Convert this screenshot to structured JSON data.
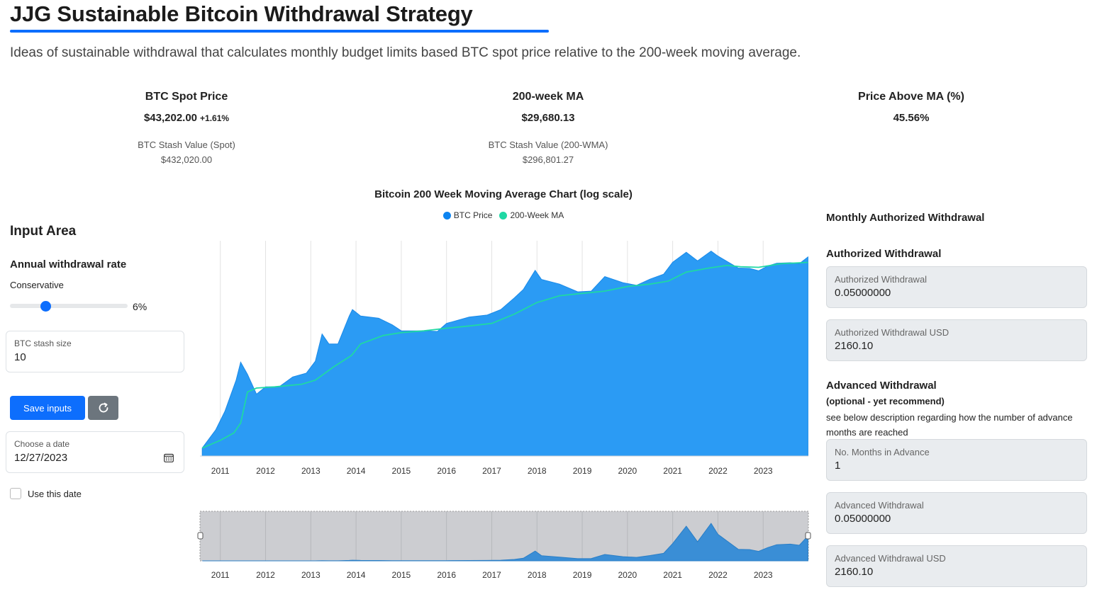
{
  "header": {
    "title": "JJG Sustainable Bitcoin Withdrawal Strategy",
    "subtitle": "Ideas of sustainable withdrawal that calculates monthly budget limits based BTC spot price relative to the 200-week moving average."
  },
  "stats": {
    "spot": {
      "label": "BTC Spot Price",
      "value": "$43,202.00",
      "change": "+1.61%",
      "stash_label": "BTC Stash Value (Spot)",
      "stash_value": "$432,020.00"
    },
    "ma": {
      "label": "200-week MA",
      "value": "$29,680.13",
      "stash_label": "BTC Stash Value (200-WMA)",
      "stash_value": "$296,801.27"
    },
    "above": {
      "label": "Price Above MA (%)",
      "value": "45.56%"
    }
  },
  "chart": {
    "title": "Bitcoin 200 Week Moving Average Chart (log scale)",
    "legend": [
      "BTC Price",
      "200-Week MA"
    ]
  },
  "chart_data": {
    "type": "area",
    "title": "Bitcoin 200 Week Moving Average Chart (log scale)",
    "y_scale": "log",
    "x_ticks": [
      "2011",
      "2012",
      "2013",
      "2014",
      "2015",
      "2016",
      "2017",
      "2018",
      "2019",
      "2020",
      "2021",
      "2022",
      "2023"
    ],
    "grid": "vertical lines",
    "legend_position": "top-center",
    "series": [
      {
        "name": "BTC Price",
        "color": "#2b9bf4",
        "points": [
          [
            2010.6,
            0.07
          ],
          [
            2010.9,
            0.25
          ],
          [
            2011.1,
            0.9
          ],
          [
            2011.35,
            8
          ],
          [
            2011.45,
            28
          ],
          [
            2011.6,
            12
          ],
          [
            2011.8,
            3
          ],
          [
            2012.0,
            5
          ],
          [
            2012.3,
            5
          ],
          [
            2012.6,
            10
          ],
          [
            2012.9,
            13
          ],
          [
            2013.1,
            30
          ],
          [
            2013.25,
            200
          ],
          [
            2013.4,
            100
          ],
          [
            2013.6,
            100
          ],
          [
            2013.85,
            700
          ],
          [
            2013.92,
            1100
          ],
          [
            2014.1,
            700
          ],
          [
            2014.5,
            600
          ],
          [
            2014.8,
            380
          ],
          [
            2015.0,
            250
          ],
          [
            2015.5,
            250
          ],
          [
            2015.8,
            240
          ],
          [
            2016.0,
            420
          ],
          [
            2016.5,
            650
          ],
          [
            2016.9,
            750
          ],
          [
            2017.2,
            1100
          ],
          [
            2017.5,
            2500
          ],
          [
            2017.7,
            4500
          ],
          [
            2017.96,
            17000
          ],
          [
            2018.1,
            9000
          ],
          [
            2018.5,
            6500
          ],
          [
            2018.9,
            3800
          ],
          [
            2019.2,
            4000
          ],
          [
            2019.5,
            11000
          ],
          [
            2019.9,
            7200
          ],
          [
            2020.2,
            6000
          ],
          [
            2020.5,
            9200
          ],
          [
            2020.8,
            13000
          ],
          [
            2021.0,
            30000
          ],
          [
            2021.3,
            60000
          ],
          [
            2021.55,
            33000
          ],
          [
            2021.85,
            65000
          ],
          [
            2022.0,
            46000
          ],
          [
            2022.45,
            20000
          ],
          [
            2022.7,
            19500
          ],
          [
            2022.9,
            16500
          ],
          [
            2023.1,
            23000
          ],
          [
            2023.3,
            28000
          ],
          [
            2023.6,
            29000
          ],
          [
            2023.8,
            27000
          ],
          [
            2023.99,
            43202
          ]
        ]
      },
      {
        "name": "200-Week MA",
        "color": "#1fd8a4",
        "points": [
          [
            2010.6,
            0.07
          ],
          [
            2011.0,
            0.12
          ],
          [
            2011.3,
            0.2
          ],
          [
            2011.45,
            0.4
          ],
          [
            2011.6,
            3.5
          ],
          [
            2011.8,
            4.6
          ],
          [
            2012.2,
            5
          ],
          [
            2012.8,
            6
          ],
          [
            2013.1,
            8
          ],
          [
            2013.5,
            20
          ],
          [
            2013.9,
            45
          ],
          [
            2014.1,
            100
          ],
          [
            2014.6,
            180
          ],
          [
            2015.0,
            220
          ],
          [
            2015.5,
            250
          ],
          [
            2016.0,
            300
          ],
          [
            2016.5,
            350
          ],
          [
            2017.0,
            420
          ],
          [
            2017.5,
            800
          ],
          [
            2018.0,
            1800
          ],
          [
            2018.5,
            2900
          ],
          [
            2019.0,
            3400
          ],
          [
            2019.5,
            4000
          ],
          [
            2020.0,
            5500
          ],
          [
            2020.5,
            6500
          ],
          [
            2020.9,
            8000
          ],
          [
            2021.3,
            15000
          ],
          [
            2021.8,
            20000
          ],
          [
            2022.2,
            24000
          ],
          [
            2022.5,
            22000
          ],
          [
            2022.9,
            21000
          ],
          [
            2023.4,
            27000
          ],
          [
            2023.99,
            29680
          ]
        ]
      }
    ]
  },
  "input_area": {
    "title": "Input Area",
    "rate_title": "Annual withdrawal rate",
    "rate_mode": "Conservative",
    "rate_value": "6%",
    "rate_fraction": 0.3,
    "stash_label": "BTC stash size",
    "stash_value": "10",
    "save_label": "Save inputs",
    "date_label": "Choose a date",
    "date_value": "12/27/2023",
    "use_date_label": "Use this date"
  },
  "right": {
    "heading": "Monthly Authorized Withdrawal",
    "authorized_heading": "Authorized Withdrawal",
    "authorized_btc_label": "Authorized Withdrawal",
    "authorized_btc_value": "0.05000000",
    "authorized_usd_label": "Authorized Withdrawal USD",
    "authorized_usd_value": "2160.10",
    "advanced_heading": "Advanced Withdrawal",
    "advanced_note": "(optional - yet recommend)",
    "advanced_desc": "see below description regarding how the number of advance months are reached",
    "months_label": "No. Months in Advance",
    "months_value": "1",
    "advanced_btc_label": "Advanced Withdrawal",
    "advanced_btc_value": "0.05000000",
    "advanced_usd_label": "Advanced Withdrawal USD",
    "advanced_usd_value": "2160.10"
  },
  "colors": {
    "accent": "#0d6efd",
    "price_area": "#2b9bf4",
    "ma_line": "#1fd8a4",
    "positive": "#222222"
  }
}
